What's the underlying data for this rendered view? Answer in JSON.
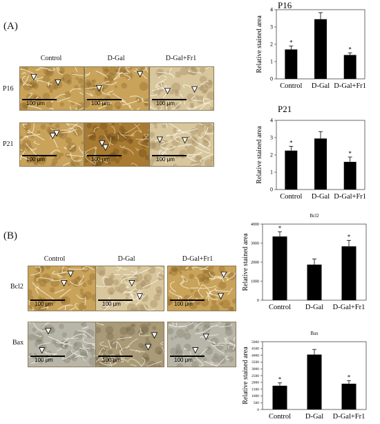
{
  "panels": [
    {
      "label": "(A)",
      "columns": [
        "Control",
        "D-Gal",
        "D-Gal+Fr1"
      ],
      "rows": [
        {
          "label": "P16",
          "tones": [
            "warm",
            "warm",
            "pale"
          ]
        },
        {
          "label": "P21",
          "tones": [
            "warm",
            "dark",
            "pale"
          ]
        }
      ]
    },
    {
      "label": "(B)",
      "columns": [
        "Control",
        "D-Gal",
        "D-Gal+Fr1"
      ],
      "rows": [
        {
          "label": "Bcl2",
          "tones": [
            "warm",
            "pale",
            "warm"
          ]
        },
        {
          "label": "Bax",
          "tones": [
            "grey",
            "mid",
            "grey"
          ]
        }
      ]
    }
  ],
  "scale_bar_label": "100 μm",
  "chart_data": [
    {
      "type": "bar",
      "title": "P16",
      "categories": [
        "Control",
        "D-Gal",
        "D-Gal+Fr1"
      ],
      "values": [
        1.7,
        3.45,
        1.38
      ],
      "errors": [
        0.2,
        0.38,
        0.12
      ],
      "significant": [
        true,
        false,
        true
      ],
      "ylabel": "Relative stained area",
      "ylim": [
        0,
        4
      ],
      "yticks": [
        0,
        1,
        2,
        3,
        4
      ],
      "color": "#000000"
    },
    {
      "type": "bar",
      "title": "P21",
      "categories": [
        "Control",
        "D-Gal",
        "D-Gal+Fr1"
      ],
      "values": [
        2.25,
        2.95,
        1.6
      ],
      "errors": [
        0.25,
        0.4,
        0.28
      ],
      "significant": [
        true,
        false,
        true
      ],
      "ylabel": "Relative stained area",
      "ylim": [
        0,
        4
      ],
      "yticks": [
        0,
        1,
        2,
        3,
        4
      ],
      "color": "#000000"
    },
    {
      "type": "bar",
      "title": "Bcl2",
      "categories": [
        "Control",
        "D-Gal",
        "D-Gal+Fr1"
      ],
      "values": [
        3350,
        1870,
        2830
      ],
      "errors": [
        250,
        300,
        320
      ],
      "significant": [
        true,
        false,
        true
      ],
      "ylabel": "Relative stained area",
      "ylim": [
        0,
        4000
      ],
      "yticks": [
        0,
        1000,
        2000,
        3000,
        4000
      ],
      "color": "#000000"
    },
    {
      "type": "bar",
      "title": "Bax",
      "categories": [
        "Control",
        "D-Gal",
        "D-Gal+Fr1"
      ],
      "values": [
        1750,
        4050,
        1900
      ],
      "errors": [
        220,
        380,
        230
      ],
      "significant": [
        true,
        false,
        true
      ],
      "ylabel": "Relative stained area",
      "ylim": [
        0,
        5000
      ],
      "yticks": [
        0,
        500,
        1000,
        1500,
        2000,
        2500,
        3000,
        3500,
        4000,
        4500,
        5000
      ],
      "color": "#000000"
    }
  ]
}
